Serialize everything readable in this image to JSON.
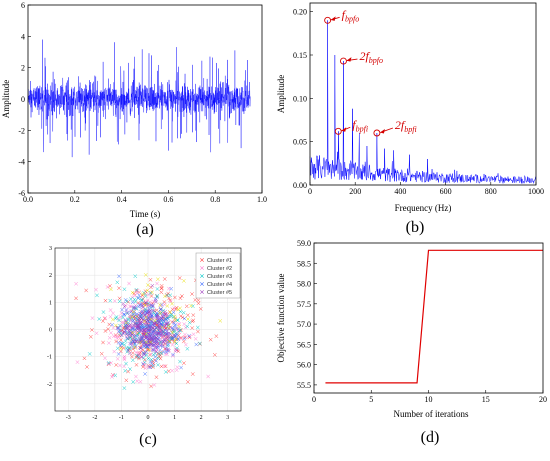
{
  "chart_data": [
    {
      "id": "a",
      "type": "line",
      "panel_label": "(a)",
      "xlabel": "Time (s)",
      "ylabel": "Amplitude",
      "xlim": [
        0,
        1.0
      ],
      "ylim": [
        -6,
        6
      ],
      "xticks": [
        "0.0",
        "0.2",
        "0.4",
        "0.6",
        "0.8",
        "1.0"
      ],
      "yticks": [
        "-6",
        "-4",
        "-2",
        "0",
        "2",
        "4",
        "6"
      ],
      "signal_extent_s": 0.95,
      "signal_peak_amplitude": 4.3,
      "series": [
        {
          "color": "#0000ff"
        }
      ]
    },
    {
      "id": "b",
      "type": "line",
      "panel_label": "(b)",
      "xlabel": "Frequency (Hz)",
      "ylabel": "Amplitude",
      "xlim": [
        0,
        1000
      ],
      "ylim": [
        0,
        0.21
      ],
      "xticks": [
        "0",
        "200",
        "400",
        "600",
        "800",
        "1000"
      ],
      "yticks": [
        "0.00",
        "0.05",
        "0.10",
        "0.15",
        "0.20"
      ],
      "peaks": [
        {
          "x": 78,
          "y": 0.19
        },
        {
          "x": 110,
          "y": 0.15
        },
        {
          "x": 148,
          "y": 0.143
        },
        {
          "x": 188,
          "y": 0.088
        },
        {
          "x": 125,
          "y": 0.062
        },
        {
          "x": 218,
          "y": 0.06
        },
        {
          "x": 252,
          "y": 0.045
        },
        {
          "x": 296,
          "y": 0.06
        },
        {
          "x": 330,
          "y": 0.042
        },
        {
          "x": 370,
          "y": 0.04
        },
        {
          "x": 440,
          "y": 0.035
        },
        {
          "x": 520,
          "y": 0.03
        }
      ],
      "annotations": [
        {
          "main": "f",
          "sub": "bpfo",
          "x": 78,
          "y": 0.19
        },
        {
          "main": "2f",
          "sub": "bpfo",
          "x": 148,
          "y": 0.143
        },
        {
          "main": "f",
          "sub": "bpfi",
          "x": 125,
          "y": 0.062
        },
        {
          "main": "2f",
          "sub": "bpfi",
          "x": 296,
          "y": 0.06
        }
      ],
      "series": [
        {
          "color": "#0000ff"
        }
      ],
      "annotation_color": "#d40000"
    },
    {
      "id": "c",
      "type": "scatter",
      "panel_label": "(c)",
      "xlim": [
        -3.5,
        3.5
      ],
      "ylim": [
        -3,
        3
      ],
      "xticks": [
        "-3",
        "-2",
        "-1",
        "0",
        "1",
        "2",
        "3"
      ],
      "yticks": [
        "-2",
        "-1",
        "0",
        "1",
        "2",
        "3"
      ],
      "grid": true,
      "legend_position": "top-right",
      "series": [
        {
          "name": "Cluster #1",
          "color": "#ff3b3b",
          "center": [
            0,
            0
          ],
          "spread": 0.9
        },
        {
          "name": "Cluster #2",
          "color": "#ff7ad0",
          "center": [
            0,
            0
          ],
          "spread": 0.8
        },
        {
          "name": "Cluster #3",
          "color": "#00c8c8",
          "center": [
            -0.1,
            0.1
          ],
          "spread": 0.75
        },
        {
          "name": "Cluster #4",
          "color": "#3c6bff",
          "center": [
            0,
            0
          ],
          "spread": 0.55
        },
        {
          "name": "Cluster #5",
          "color": "#a040c0",
          "center": [
            0,
            0
          ],
          "spread": 0.45
        }
      ],
      "extra_color": "#e8e000"
    },
    {
      "id": "d",
      "type": "line",
      "panel_label": "(d)",
      "xlabel": "Number of iterations",
      "ylabel": "Objective function value",
      "xlim": [
        0,
        20
      ],
      "ylim": [
        55.3,
        59.0
      ],
      "xticks": [
        "0",
        "5",
        "10",
        "15",
        "20"
      ],
      "yticks": [
        "55.5",
        "56.0",
        "56.5",
        "57.0",
        "57.5",
        "58.0",
        "58.5",
        "59.0"
      ],
      "x": [
        1,
        9,
        10,
        20
      ],
      "values": [
        55.55,
        55.55,
        58.82,
        58.82
      ],
      "series": [
        {
          "color": "#e00000"
        }
      ]
    }
  ]
}
